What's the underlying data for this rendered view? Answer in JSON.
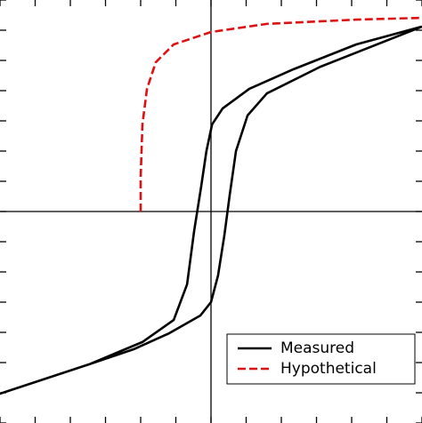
{
  "chart_data": {
    "type": "line",
    "xlim": [
      -6,
      6
    ],
    "ylim": [
      -7,
      7
    ],
    "xticks": [
      -6,
      -5,
      -4,
      -3,
      -2,
      -1,
      0,
      1,
      2,
      3,
      4,
      5,
      6
    ],
    "yticks": [
      -7,
      -6,
      -5,
      -4,
      -3,
      -2,
      -1,
      0,
      1,
      2,
      3,
      4,
      5,
      6,
      7
    ],
    "legend": "lower right",
    "series": [
      {
        "name": "Measured",
        "color": "#000000",
        "style": "solid",
        "x": [
          6.0,
          4.13,
          2.35,
          1.09,
          0.33,
          0.03,
          -0.13,
          -0.28,
          -0.48,
          -0.68,
          -1.06,
          -1.95,
          -3.47,
          -6.0,
          -3.47,
          -2.2,
          -1.19,
          -0.3,
          0.0,
          0.2,
          0.38,
          0.53,
          0.71,
          1.04,
          1.59,
          3.11,
          6.0
        ],
        "values": [
          6.12,
          5.53,
          4.71,
          4.06,
          3.41,
          2.88,
          2.0,
          0.82,
          -0.65,
          -2.41,
          -3.59,
          -4.32,
          -5.06,
          -6.03,
          -5.06,
          -4.56,
          -4.03,
          -3.44,
          -3.0,
          -2.12,
          -0.79,
          0.53,
          2.0,
          3.18,
          3.91,
          4.79,
          6.12
        ]
      },
      {
        "name": "Hypothetical",
        "color": "#dd1111",
        "style": "dashed",
        "x": [
          -2.0,
          -2.0,
          -1.95,
          -1.82,
          -1.57,
          -1.06,
          0.0,
          1.59,
          4.13,
          6.0
        ],
        "values": [
          0.0,
          1.12,
          2.88,
          4.06,
          4.94,
          5.53,
          5.94,
          6.21,
          6.35,
          6.41
        ]
      }
    ]
  }
}
